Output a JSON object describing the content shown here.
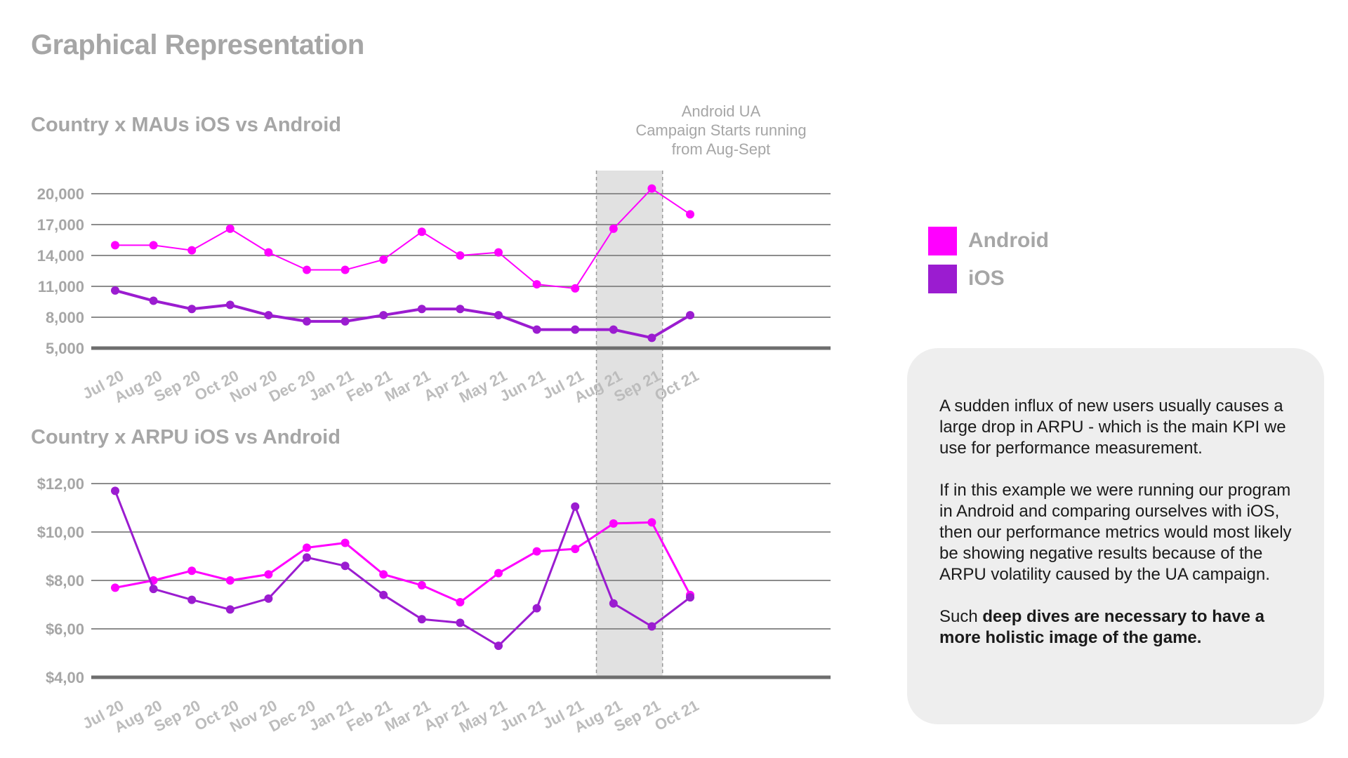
{
  "page_title": "Graphical Representation",
  "annotation": {
    "lines": [
      "Android UA",
      "Campaign Starts running",
      "from Aug-Sept"
    ]
  },
  "legend": [
    {
      "label": "Android",
      "color": "#ff00ff"
    },
    {
      "label": "iOS",
      "color": "#9b1cd0"
    }
  ],
  "info": {
    "paragraph1": "A sudden influx of new users usually causes a large drop in ARPU - which is the main KPI we use for performance measurement.",
    "paragraph2": "If in this example we were running our program in Android and comparing ourselves with iOS, then our performance metrics would most likely be showing negative results because of the ARPU volatility caused by the UA campaign.",
    "paragraph3_prefix": "Such ",
    "paragraph3_bold": "deep dives are necessary to have a more holistic image of the game."
  },
  "chart_data": [
    {
      "type": "line",
      "title": "Country x MAUs iOS vs Android",
      "categories": [
        "Jul 20",
        "Aug 20",
        "Sep 20",
        "Oct 20",
        "Nov 20",
        "Dec 20",
        "Jan 21",
        "Feb 21",
        "Mar 21",
        "Apr 21",
        "May 21",
        "Jun 21",
        "Jul 21",
        "Aug 21",
        "Sep 21",
        "Oct 21"
      ],
      "yticks": [
        5000,
        8000,
        11000,
        14000,
        17000,
        20000
      ],
      "ytick_labels": [
        "5,000",
        "8,000",
        "11,000",
        "14,000",
        "17,000",
        "20,000"
      ],
      "ylim": [
        5000,
        20000
      ],
      "grid": true,
      "highlight": [
        "Aug 21",
        "Sep 21"
      ],
      "series": [
        {
          "name": "Android",
          "color": "#ff00ff",
          "values": [
            15000,
            15000,
            14500,
            16600,
            14300,
            12600,
            12600,
            13600,
            16300,
            14000,
            14300,
            11200,
            10800,
            16600,
            20500,
            18000
          ]
        },
        {
          "name": "iOS",
          "color": "#9b1cd0",
          "values": [
            10600,
            9600,
            8800,
            9200,
            8200,
            7600,
            7600,
            8200,
            8800,
            8800,
            8200,
            6800,
            6800,
            6800,
            6000,
            8200
          ]
        }
      ]
    },
    {
      "type": "line",
      "title": "Country x ARPU iOS vs Android",
      "categories": [
        "Jul 20",
        "Aug 20",
        "Sep 20",
        "Oct 20",
        "Nov 20",
        "Dec 20",
        "Jan 21",
        "Feb 21",
        "Mar 21",
        "Apr 21",
        "May 21",
        "Jun 21",
        "Jul 21",
        "Aug 21",
        "Sep 21",
        "Oct 21"
      ],
      "yticks": [
        4,
        6,
        8,
        10,
        12
      ],
      "ytick_labels": [
        "$4,00",
        "$6,00",
        "$8,00",
        "$10,00",
        "$12,00"
      ],
      "ylim": [
        4,
        12
      ],
      "grid": true,
      "highlight": [
        "Aug 21",
        "Sep 21"
      ],
      "series": [
        {
          "name": "Android",
          "color": "#ff00ff",
          "values": [
            7.7,
            8.0,
            8.4,
            8.0,
            8.25,
            9.35,
            9.55,
            8.25,
            7.8,
            7.1,
            8.3,
            9.2,
            9.3,
            10.35,
            10.4,
            7.4
          ]
        },
        {
          "name": "iOS",
          "color": "#9b1cd0",
          "values": [
            11.7,
            7.65,
            7.2,
            6.8,
            7.25,
            8.95,
            8.6,
            7.4,
            6.4,
            6.25,
            5.3,
            6.85,
            11.05,
            7.05,
            6.1,
            7.3
          ]
        }
      ]
    }
  ]
}
